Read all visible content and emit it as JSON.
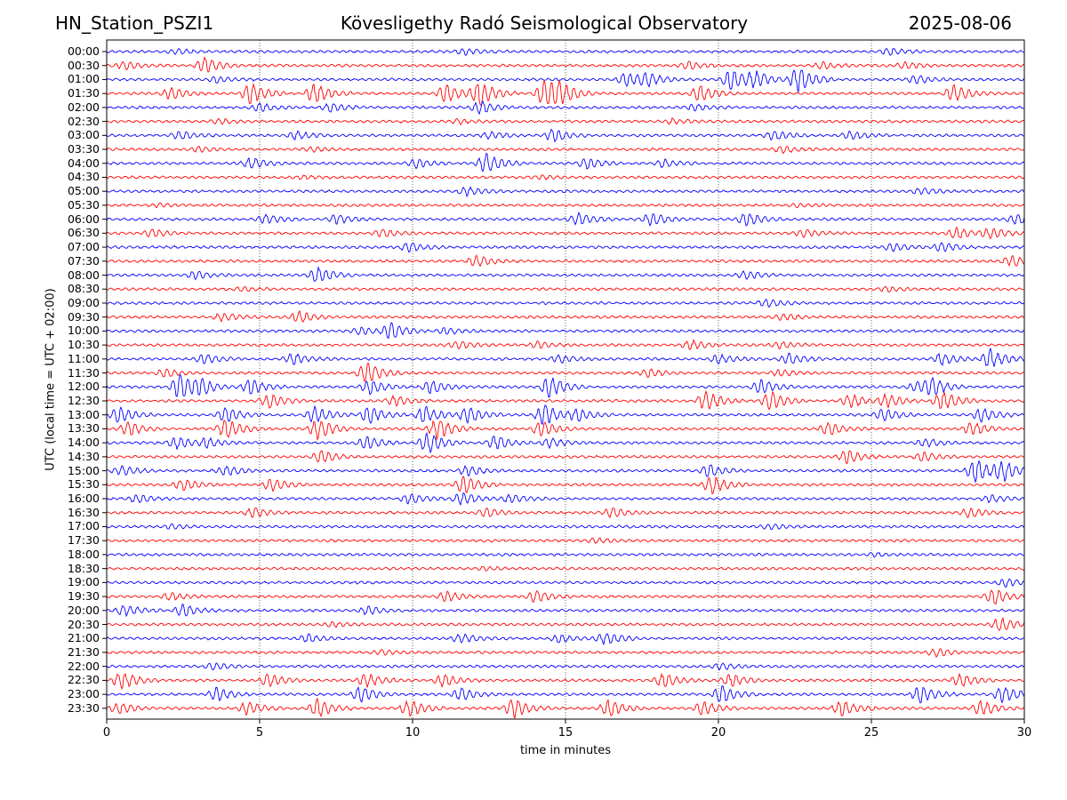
{
  "header": {
    "station": "HN_Station_PSZI1",
    "title": "Kövesligethy Radó Seismological Observatory",
    "date": "2025-08-06"
  },
  "chart_data": {
    "type": "line",
    "title": "Kövesligethy Radó Seismological Observatory",
    "xlabel": "time in minutes",
    "ylabel": "UTC (local time = UTC + 02:00)",
    "xlim": [
      0,
      30
    ],
    "xticks": [
      "0",
      "5",
      "10",
      "15",
      "20",
      "25",
      "30"
    ],
    "grid": "vertical dotted at x ticks",
    "colors": {
      "even_rows": "#0000ff",
      "odd_rows": "#ff0000"
    },
    "rows": [
      {
        "label": "00:00",
        "events": [
          [
            2.3,
            0.3
          ],
          [
            11.7,
            0.4
          ],
          [
            25.6,
            0.4
          ]
        ]
      },
      {
        "label": "00:30",
        "events": [
          [
            0.6,
            0.5
          ],
          [
            3.2,
            1.0
          ],
          [
            19.0,
            0.5
          ],
          [
            23.4,
            0.4
          ],
          [
            26.1,
            0.4
          ]
        ]
      },
      {
        "label": "01:00",
        "events": [
          [
            3.6,
            0.4
          ],
          [
            17.0,
            0.9
          ],
          [
            17.7,
            0.7
          ],
          [
            20.4,
            1.3
          ],
          [
            21.2,
            1.0
          ],
          [
            22.6,
            1.6
          ],
          [
            26.5,
            0.5
          ]
        ]
      },
      {
        "label": "01:30",
        "events": [
          [
            2.1,
            0.8
          ],
          [
            4.7,
            1.4
          ],
          [
            6.8,
            1.3
          ],
          [
            11.1,
            1.2
          ],
          [
            12.2,
            1.6
          ],
          [
            14.3,
            1.6
          ],
          [
            14.8,
            1.2
          ],
          [
            19.4,
            1.0
          ],
          [
            27.7,
            1.1
          ]
        ]
      },
      {
        "label": "02:00",
        "events": [
          [
            5.0,
            0.5
          ],
          [
            7.3,
            0.5
          ],
          [
            12.2,
            0.8
          ],
          [
            19.2,
            0.4
          ]
        ]
      },
      {
        "label": "02:30",
        "events": [
          [
            3.7,
            0.3
          ],
          [
            11.5,
            0.3
          ],
          [
            18.5,
            0.3
          ]
        ]
      },
      {
        "label": "03:00",
        "events": [
          [
            2.4,
            0.5
          ],
          [
            6.2,
            0.5
          ],
          [
            12.5,
            0.5
          ],
          [
            14.6,
            0.8
          ],
          [
            21.8,
            0.6
          ],
          [
            24.3,
            0.5
          ]
        ]
      },
      {
        "label": "03:30",
        "events": [
          [
            3.0,
            0.3
          ],
          [
            6.7,
            0.3
          ],
          [
            22.1,
            0.4
          ]
        ]
      },
      {
        "label": "04:00",
        "events": [
          [
            4.7,
            0.7
          ],
          [
            10.1,
            0.6
          ],
          [
            12.4,
            1.3
          ],
          [
            15.7,
            0.7
          ],
          [
            18.2,
            0.5
          ]
        ]
      },
      {
        "label": "04:30",
        "events": [
          [
            6.4,
            0.2
          ],
          [
            14.2,
            0.2
          ]
        ]
      },
      {
        "label": "05:00",
        "events": [
          [
            11.8,
            0.6
          ],
          [
            26.6,
            0.4
          ]
        ]
      },
      {
        "label": "05:30",
        "events": [
          [
            1.7,
            0.2
          ],
          [
            22.6,
            0.2
          ]
        ]
      },
      {
        "label": "06:00",
        "events": [
          [
            5.2,
            0.6
          ],
          [
            7.5,
            0.6
          ],
          [
            15.4,
            0.8
          ],
          [
            17.8,
            0.8
          ],
          [
            20.9,
            0.8
          ],
          [
            29.7,
            0.6
          ]
        ]
      },
      {
        "label": "06:30",
        "events": [
          [
            1.5,
            0.5
          ],
          [
            9.0,
            0.5
          ],
          [
            22.8,
            0.5
          ],
          [
            27.8,
            0.7
          ],
          [
            28.9,
            0.7
          ]
        ]
      },
      {
        "label": "07:00",
        "events": [
          [
            9.9,
            0.6
          ],
          [
            25.7,
            0.5
          ],
          [
            27.3,
            0.6
          ]
        ]
      },
      {
        "label": "07:30",
        "events": [
          [
            12.1,
            0.7
          ],
          [
            29.6,
            0.7
          ]
        ]
      },
      {
        "label": "08:00",
        "events": [
          [
            2.9,
            0.5
          ],
          [
            6.9,
            1.0
          ],
          [
            20.9,
            0.5
          ]
        ]
      },
      {
        "label": "08:30",
        "events": [
          [
            4.5,
            0.2
          ],
          [
            25.5,
            0.3
          ]
        ]
      },
      {
        "label": "09:00",
        "events": [
          [
            21.6,
            0.5
          ]
        ]
      },
      {
        "label": "09:30",
        "events": [
          [
            3.8,
            0.5
          ],
          [
            6.3,
            0.7
          ],
          [
            22.1,
            0.4
          ]
        ]
      },
      {
        "label": "10:00",
        "events": [
          [
            8.3,
            0.5
          ],
          [
            9.3,
            1.0
          ],
          [
            11.1,
            0.4
          ]
        ]
      },
      {
        "label": "10:30",
        "events": [
          [
            11.5,
            0.5
          ],
          [
            14.1,
            0.4
          ],
          [
            19.1,
            0.6
          ],
          [
            22.0,
            0.4
          ]
        ]
      },
      {
        "label": "11:00",
        "events": [
          [
            3.2,
            0.6
          ],
          [
            6.1,
            0.7
          ],
          [
            14.8,
            0.5
          ],
          [
            20.0,
            0.6
          ],
          [
            22.3,
            0.7
          ],
          [
            27.3,
            0.7
          ],
          [
            28.9,
            1.3
          ]
        ]
      },
      {
        "label": "11:30",
        "events": [
          [
            1.9,
            0.5
          ],
          [
            8.5,
            1.4
          ],
          [
            17.7,
            0.5
          ],
          [
            22.0,
            0.4
          ]
        ]
      },
      {
        "label": "12:00",
        "events": [
          [
            2.4,
            1.6
          ],
          [
            3.1,
            0.8
          ],
          [
            4.7,
            1.0
          ],
          [
            8.6,
            0.9
          ],
          [
            10.6,
            0.8
          ],
          [
            14.5,
            1.4
          ],
          [
            21.4,
            0.9
          ],
          [
            26.5,
            0.6
          ],
          [
            27.0,
            1.0
          ]
        ]
      },
      {
        "label": "12:30",
        "events": [
          [
            5.3,
            0.9
          ],
          [
            9.4,
            0.7
          ],
          [
            19.6,
            1.3
          ],
          [
            21.7,
            1.2
          ],
          [
            24.3,
            0.9
          ],
          [
            25.5,
            0.9
          ],
          [
            27.3,
            1.3
          ]
        ]
      },
      {
        "label": "13:00",
        "events": [
          [
            0.4,
            1.0
          ],
          [
            3.9,
            0.9
          ],
          [
            6.8,
            1.1
          ],
          [
            8.6,
            1.1
          ],
          [
            10.4,
            1.1
          ],
          [
            11.8,
            1.0
          ],
          [
            14.3,
            1.4
          ],
          [
            15.4,
            0.7
          ],
          [
            25.4,
            0.8
          ],
          [
            28.6,
            0.9
          ]
        ]
      },
      {
        "label": "13:30",
        "events": [
          [
            0.7,
            0.9
          ],
          [
            3.9,
            1.3
          ],
          [
            6.9,
            1.4
          ],
          [
            10.8,
            1.4
          ],
          [
            14.2,
            1.0
          ],
          [
            23.6,
            0.8
          ],
          [
            28.3,
            0.8
          ]
        ]
      },
      {
        "label": "14:00",
        "events": [
          [
            2.3,
            0.8
          ],
          [
            3.3,
            0.6
          ],
          [
            8.5,
            0.8
          ],
          [
            10.5,
            1.4
          ],
          [
            12.7,
            0.9
          ],
          [
            14.5,
            0.6
          ],
          [
            26.8,
            0.5
          ]
        ]
      },
      {
        "label": "14:30",
        "events": [
          [
            7.0,
            0.8
          ],
          [
            24.2,
            0.9
          ],
          [
            26.7,
            0.6
          ]
        ]
      },
      {
        "label": "15:00",
        "events": [
          [
            0.5,
            0.6
          ],
          [
            3.9,
            0.6
          ],
          [
            11.8,
            0.7
          ],
          [
            19.7,
            0.8
          ],
          [
            28.4,
            1.6
          ],
          [
            29.3,
            1.2
          ]
        ]
      },
      {
        "label": "15:30",
        "events": [
          [
            2.5,
            0.7
          ],
          [
            5.4,
            0.8
          ],
          [
            11.7,
            1.2
          ],
          [
            19.8,
            1.2
          ]
        ]
      },
      {
        "label": "16:00",
        "events": [
          [
            1.0,
            0.5
          ],
          [
            9.9,
            0.6
          ],
          [
            11.6,
            0.8
          ],
          [
            13.2,
            0.5
          ],
          [
            28.9,
            0.5
          ]
        ]
      },
      {
        "label": "16:30",
        "events": [
          [
            4.8,
            0.6
          ],
          [
            12.4,
            0.5
          ],
          [
            16.5,
            0.6
          ],
          [
            28.2,
            0.6
          ]
        ]
      },
      {
        "label": "17:00",
        "events": [
          [
            2.1,
            0.3
          ],
          [
            21.7,
            0.3
          ]
        ]
      },
      {
        "label": "17:30",
        "events": [
          [
            16.0,
            0.3
          ]
        ]
      },
      {
        "label": "18:00",
        "events": [
          [
            25.1,
            0.2
          ]
        ]
      },
      {
        "label": "18:30",
        "events": [
          [
            12.4,
            0.2
          ]
        ]
      },
      {
        "label": "19:00",
        "events": [
          [
            29.4,
            0.5
          ]
        ]
      },
      {
        "label": "19:30",
        "events": [
          [
            2.1,
            0.5
          ],
          [
            11.1,
            0.7
          ],
          [
            14.0,
            0.8
          ],
          [
            29.0,
            1.0
          ]
        ]
      },
      {
        "label": "20:00",
        "events": [
          [
            0.6,
            0.7
          ],
          [
            2.5,
            0.8
          ],
          [
            8.5,
            0.5
          ]
        ]
      },
      {
        "label": "20:30",
        "events": [
          [
            7.4,
            0.3
          ],
          [
            29.2,
            0.9
          ]
        ]
      },
      {
        "label": "21:00",
        "events": [
          [
            6.6,
            0.5
          ],
          [
            11.6,
            0.6
          ],
          [
            16.3,
            0.8
          ],
          [
            14.8,
            0.5
          ]
        ]
      },
      {
        "label": "21:30",
        "events": [
          [
            9.0,
            0.3
          ],
          [
            27.1,
            0.5
          ]
        ]
      },
      {
        "label": "22:00",
        "events": [
          [
            3.5,
            0.4
          ],
          [
            20.1,
            0.4
          ]
        ]
      },
      {
        "label": "22:30",
        "events": [
          [
            0.5,
            1.1
          ],
          [
            5.3,
            0.8
          ],
          [
            8.5,
            0.9
          ],
          [
            11.0,
            0.8
          ],
          [
            18.2,
            0.9
          ],
          [
            20.4,
            0.8
          ],
          [
            27.9,
            0.8
          ]
        ]
      },
      {
        "label": "23:00",
        "events": [
          [
            3.6,
            0.9
          ],
          [
            8.3,
            1.0
          ],
          [
            11.6,
            0.8
          ],
          [
            20.1,
            1.1
          ],
          [
            26.6,
            1.1
          ],
          [
            29.3,
            1.1
          ]
        ]
      },
      {
        "label": "23:30",
        "events": [
          [
            0.4,
            0.7
          ],
          [
            4.6,
            0.9
          ],
          [
            6.9,
            1.2
          ],
          [
            9.9,
            1.1
          ],
          [
            13.3,
            1.3
          ],
          [
            16.4,
            1.1
          ],
          [
            19.5,
            0.9
          ],
          [
            24.0,
            1.0
          ],
          [
            28.6,
            1.0
          ]
        ]
      }
    ]
  }
}
